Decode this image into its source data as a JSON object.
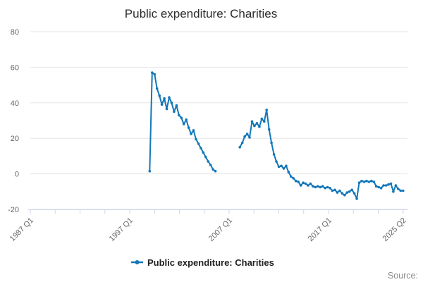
{
  "title": "Public expenditure: Charities",
  "source_label": "Source:",
  "legend": {
    "label": "Public expenditure: Charities",
    "marker": "line-dot-icon",
    "color": "#1377b8"
  },
  "colors": {
    "line": "#1377b8",
    "grid": "#e6e6e6",
    "axis": "#ccd6eb",
    "tick_label": "#666666",
    "title_text": "#2b2b2b",
    "source_text": "#8a8a8a"
  },
  "chart_data": {
    "type": "line",
    "title": "Public expenditure: Charities",
    "xlabel": "",
    "ylabel": "",
    "ylim": [
      -20,
      80
    ],
    "yticks": [
      -20,
      0,
      20,
      40,
      60,
      80
    ],
    "grid": "horizontal",
    "legend_position": "bottom-center",
    "x_axis": {
      "unit": "quarters",
      "first_quarter": "1987 Q1",
      "last_quarter": "2025 Q2",
      "total_quarters": 153,
      "minor_tick_count": 16,
      "xtick_labels": [
        "1987 Q1",
        "1997 Q1",
        "2007 Q1",
        "2017 Q1",
        "2025 Q2"
      ],
      "labeled_tick_indices": [
        0,
        4,
        8,
        12,
        15
      ]
    },
    "series": [
      {
        "name": "Public expenditure: Charities",
        "color": "#1377b8",
        "segments": [
          {
            "start": "1999 Q2",
            "start_quarter_index": 49,
            "values": [
              1.5,
              57,
              56,
              48,
              44,
              39,
              42.5,
              36.5,
              43,
              40,
              35,
              38.5,
              33,
              31.5,
              28,
              30.5,
              26,
              22.5,
              24.5,
              19.5,
              17,
              14.5,
              12,
              9.5,
              7,
              5,
              2.5,
              1.5
            ]
          },
          {
            "start": "2008 Q3",
            "start_quarter_index": 86,
            "values": [
              15,
              17.5,
              21,
              22.5,
              20.5,
              29.5,
              27,
              28.5,
              26.5,
              31,
              29.5,
              36,
              25,
              17.5,
              11,
              7,
              4,
              4.5,
              3,
              4.5,
              1,
              -1.5,
              -2.5,
              -4,
              -4.5,
              -6.5,
              -5,
              -5.5,
              -6.5,
              -5.5,
              -7,
              -7.5,
              -7,
              -7.5,
              -7,
              -8,
              -7.5,
              -8,
              -9.5,
              -9,
              -10.5,
              -9.5,
              -11,
              -12,
              -10.5,
              -10,
              -9,
              -11,
              -14,
              -5,
              -4,
              -4.5,
              -4,
              -4.5,
              -4,
              -4.5,
              -7,
              -7.5,
              -8,
              -6.5,
              -6.5,
              -6,
              -5.5,
              -10,
              -6.5,
              -8.5,
              -9.5,
              -9.5
            ]
          }
        ]
      }
    ]
  }
}
